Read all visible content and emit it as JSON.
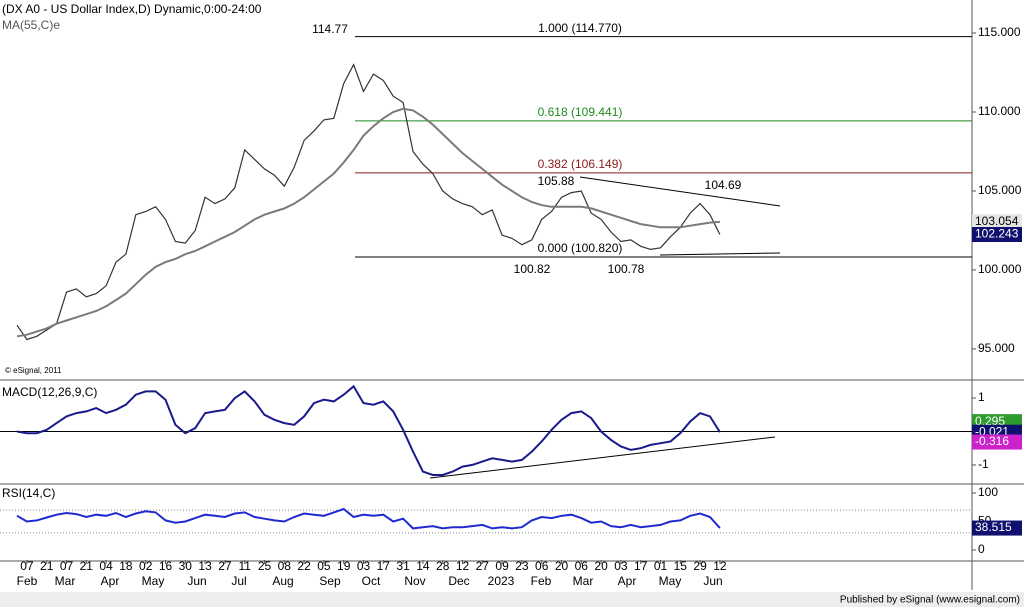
{
  "chart_data": [
    {
      "type": "line",
      "title": "(DX A0 - US Dollar Index,D) Dynamic,0:00-24:00",
      "credit": "© eSignal, 2011",
      "ylim": [
        93.16,
        117.09
      ],
      "yticks": [
        {
          "value": 115,
          "label": "115.000"
        },
        {
          "value": 110,
          "label": "110.000"
        },
        {
          "value": 105,
          "label": "105.000"
        },
        {
          "value": 100,
          "label": "100.000"
        },
        {
          "value": 95,
          "label": "95.000"
        }
      ],
      "series": [
        {
          "color": "#333333",
          "values": [
            96.5,
            95.6,
            95.8,
            96.2,
            96.6,
            98.6,
            98.8,
            98.3,
            98.5,
            99.0,
            100.5,
            101.0,
            103.5,
            103.7,
            104.0,
            103.2,
            101.8,
            101.7,
            102.5,
            104.6,
            104.2,
            104.5,
            105.2,
            107.6,
            107.0,
            106.4,
            106.0,
            105.3,
            106.5,
            108.2,
            108.8,
            109.5,
            109.6,
            111.8,
            113.0,
            111.3,
            112.4,
            112.0,
            111.0,
            110.6,
            107.5,
            106.7,
            106.1,
            105.0,
            104.5,
            104.2,
            104.0,
            103.5,
            103.8,
            102.2,
            102.0,
            101.6,
            101.9,
            103.2,
            103.7,
            104.6,
            104.9,
            105.0,
            103.6,
            103.2,
            102.4,
            101.8,
            101.9,
            101.5,
            101.3,
            101.4,
            102.1,
            102.7,
            103.6,
            104.2,
            103.5,
            102.243
          ]
        },
        {
          "name": "MA(55,C)e",
          "color": "#7a7a7a",
          "values": [
            95.8,
            95.9,
            96.1,
            96.3,
            96.6,
            96.8,
            97.0,
            97.2,
            97.4,
            97.7,
            98.1,
            98.5,
            99.1,
            99.7,
            100.2,
            100.5,
            100.7,
            101.0,
            101.2,
            101.5,
            101.8,
            102.1,
            102.4,
            102.8,
            103.2,
            103.5,
            103.7,
            103.9,
            104.2,
            104.6,
            105.1,
            105.6,
            106.1,
            106.8,
            107.6,
            108.5,
            109.1,
            109.6,
            110.0,
            110.2,
            110.1,
            109.7,
            109.2,
            108.6,
            108.0,
            107.4,
            106.9,
            106.4,
            105.9,
            105.4,
            105.0,
            104.6,
            104.3,
            104.1,
            104.0,
            104.0,
            104.0,
            104.0,
            103.9,
            103.7,
            103.5,
            103.3,
            103.1,
            102.9,
            102.8,
            102.7,
            102.7,
            102.7,
            102.8,
            102.9,
            103.0,
            103.054
          ]
        }
      ],
      "levels": [
        {
          "label": "1.000 (114.770)",
          "value": 114.77,
          "color": "#000000"
        },
        {
          "label": "0.618 (109.441)",
          "value": 109.441,
          "color": "#1e8a1e"
        },
        {
          "label": "0.382 (106.149)",
          "value": 106.149,
          "color": "#8b1a1a"
        },
        {
          "label": "0.000 (100.820)",
          "value": 100.82,
          "color": "#000000"
        }
      ],
      "annotations": [
        "114.77",
        "105.88",
        "104.69",
        "100.82",
        "100.78"
      ],
      "readouts": [
        {
          "value": 103.054,
          "color": "#e4e4e4",
          "text_color": "#000000"
        },
        {
          "value": 102.243,
          "color": "#10106e",
          "text_color": "#ffffff"
        }
      ]
    },
    {
      "type": "line",
      "title": "MACD(12,26,9,C)",
      "ylim": [
        -1.51,
        1.48
      ],
      "yticks": [
        1,
        -1
      ],
      "series": [
        {
          "color": "#1a1a8c",
          "values": [
            0.0,
            -0.05,
            -0.05,
            0.05,
            0.25,
            0.45,
            0.55,
            0.6,
            0.7,
            0.55,
            0.65,
            0.8,
            1.1,
            1.2,
            1.2,
            0.95,
            0.2,
            -0.05,
            0.1,
            0.55,
            0.6,
            0.65,
            1.0,
            1.2,
            0.9,
            0.5,
            0.35,
            0.25,
            0.2,
            0.45,
            0.85,
            0.95,
            0.9,
            1.1,
            1.35,
            0.85,
            0.8,
            0.9,
            0.6,
            0.05,
            -0.6,
            -1.2,
            -1.3,
            -1.3,
            -1.2,
            -1.05,
            -1.0,
            -0.9,
            -0.8,
            -0.85,
            -0.9,
            -0.85,
            -0.6,
            -0.3,
            0.05,
            0.35,
            0.55,
            0.6,
            0.4,
            0.0,
            -0.25,
            -0.45,
            -0.55,
            -0.5,
            -0.4,
            -0.35,
            -0.3,
            -0.05,
            0.3,
            0.55,
            0.45,
            -0.021
          ]
        }
      ],
      "readouts": [
        {
          "value": 0.295,
          "color": "#2e9b2e",
          "text_color": "#ffffff"
        },
        {
          "value": -0.021,
          "color": "#10106e",
          "text_color": "#ffffff"
        },
        {
          "value": -0.316,
          "color": "#cc22cc",
          "text_color": "#ffffff"
        }
      ]
    },
    {
      "type": "line",
      "title": "RSI(14,C)",
      "ylim": [
        -17.5,
        112.3
      ],
      "yticks": [
        100,
        50,
        0
      ],
      "levels": [
        70,
        30
      ],
      "categories": [
        null,
        "07",
        null,
        "21",
        null,
        "07",
        null,
        "21",
        null,
        "04",
        null,
        "18",
        null,
        "02",
        null,
        "16",
        null,
        "30",
        null,
        "13",
        null,
        "27",
        null,
        "11",
        null,
        "25",
        null,
        "08",
        null,
        "22",
        null,
        "05",
        null,
        "19",
        null,
        "03",
        null,
        "17",
        null,
        "31",
        null,
        "14",
        null,
        "28",
        null,
        "12",
        null,
        "27",
        null,
        "09",
        null,
        "23",
        null,
        "06",
        null,
        "20",
        null,
        "06",
        null,
        "20",
        null,
        "03",
        null,
        "17",
        null,
        "01",
        null,
        "15",
        null,
        "29",
        null,
        "12"
      ],
      "months": [
        "Feb",
        "Mar",
        "Apr",
        "May",
        "Jun",
        "Jul",
        "Aug",
        "Sep",
        "Oct",
        "Nov",
        "Dec",
        "2023",
        "Feb",
        "Mar",
        "Apr",
        "May",
        "Jun"
      ],
      "series": [
        {
          "color": "#1f2bd0",
          "values": [
            60,
            50,
            52,
            57,
            62,
            65,
            63,
            58,
            62,
            60,
            65,
            58,
            64,
            68,
            66,
            52,
            48,
            50,
            56,
            62,
            60,
            58,
            64,
            66,
            58,
            55,
            52,
            50,
            58,
            64,
            62,
            60,
            66,
            72,
            58,
            62,
            60,
            62,
            50,
            55,
            38,
            40,
            42,
            38,
            40,
            40,
            42,
            44,
            38,
            40,
            38,
            40,
            52,
            58,
            56,
            60,
            62,
            56,
            48,
            50,
            42,
            40,
            44,
            40,
            42,
            44,
            50,
            52,
            60,
            64,
            58,
            38.515
          ]
        }
      ],
      "readouts": [
        {
          "value": 38.515,
          "color": "#10106e",
          "text_color": "#ffffff"
        }
      ]
    }
  ],
  "footer": "Published by eSignal (www.esignal.com)"
}
